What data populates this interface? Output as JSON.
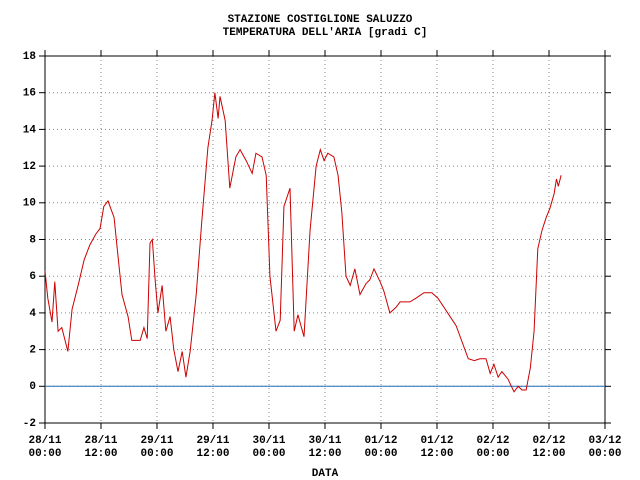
{
  "chart_data": {
    "type": "line",
    "title": [
      "STAZIONE COSTIGLIONE SALUZZO",
      "TEMPERATURA DELL'ARIA [gradi C]"
    ],
    "x_label": "DATA",
    "xlim": [
      0,
      120
    ],
    "xticks": [
      {
        "value": 0,
        "label": [
          "28/11",
          "00:00"
        ]
      },
      {
        "value": 12,
        "label": [
          "28/11",
          "12:00"
        ]
      },
      {
        "value": 24,
        "label": [
          "29/11",
          "00:00"
        ]
      },
      {
        "value": 36,
        "label": [
          "29/11",
          "12:00"
        ]
      },
      {
        "value": 48,
        "label": [
          "30/11",
          "00:00"
        ]
      },
      {
        "value": 60,
        "label": [
          "30/11",
          "12:00"
        ]
      },
      {
        "value": 72,
        "label": [
          "01/12",
          "00:00"
        ]
      },
      {
        "value": 84,
        "label": [
          "01/12",
          "12:00"
        ]
      },
      {
        "value": 96,
        "label": [
          "02/12",
          "00:00"
        ]
      },
      {
        "value": 108,
        "label": [
          "02/12",
          "12:00"
        ]
      },
      {
        "value": 120,
        "label": [
          "03/12",
          "00:00"
        ]
      }
    ],
    "ylim": [
      -2,
      18
    ],
    "yticks": [
      -2,
      0,
      2,
      4,
      6,
      8,
      10,
      12,
      14,
      16,
      18
    ],
    "grid": true,
    "reference_line": {
      "value": 0,
      "color": "#1f6fbf"
    },
    "x": [
      0,
      0.6,
      1.5,
      2.1,
      2.8,
      3.6,
      4.9,
      5.8,
      7.1,
      8.4,
      9.6,
      10.9,
      11.8,
      12.6,
      13.5,
      14.8,
      15.6,
      16.5,
      17.8,
      18.6,
      20.4,
      21.2,
      21.9,
      22.5,
      23,
      23.6,
      24.2,
      25.1,
      25.9,
      26.8,
      27.6,
      28.5,
      29.4,
      30.2,
      31.1,
      32.4,
      33.6,
      34.9,
      35.8,
      36.4,
      37.1,
      37.5,
      38.6,
      39.6,
      40.9,
      41.8,
      43.1,
      44.4,
      45.2,
      46.5,
      47.4,
      48.2,
      49.5,
      50.4,
      51.2,
      52.5,
      53.4,
      54.2,
      55.5,
      56.8,
      58.1,
      59.0,
      59.8,
      60.6,
      61.9,
      62.8,
      63.6,
      64.5,
      65.4,
      66.4,
      67.5,
      68.8,
      69.6,
      70.5,
      71.8,
      72.6,
      73.9,
      75.2,
      76.1,
      78.2,
      79.5,
      81.2,
      82.9,
      84.2,
      85.5,
      86.8,
      88.1,
      89.4,
      90.7,
      92.0,
      93.2,
      94.5,
      95.4,
      96.2,
      97.1,
      97.9,
      99.2,
      100.5,
      101.4,
      102.2,
      103.1,
      104.0,
      104.8,
      105.6,
      106.5,
      107.4,
      108.2,
      109.1,
      109.6,
      110.0,
      110.6
    ],
    "series": [
      {
        "color": "#cc0000",
        "values": [
          6.3,
          4.8,
          3.5,
          5.7,
          3.0,
          3.2,
          1.9,
          4.2,
          5.5,
          6.9,
          7.7,
          8.3,
          8.6,
          9.8,
          10.1,
          9.2,
          7.2,
          5.0,
          3.8,
          2.5,
          2.5,
          3.2,
          2.6,
          7.8,
          8.0,
          5.8,
          4.0,
          5.5,
          3.0,
          3.8,
          2.0,
          0.8,
          1.9,
          0.5,
          1.9,
          5.0,
          9.0,
          13.0,
          14.5,
          16.0,
          14.6,
          15.8,
          14.5,
          10.8,
          12.5,
          12.9,
          12.3,
          11.6,
          12.7,
          12.5,
          11.5,
          6.0,
          3.0,
          3.6,
          9.8,
          10.8,
          3.0,
          3.9,
          2.7,
          8.5,
          12.0,
          12.9,
          12.3,
          12.7,
          12.5,
          11.5,
          9.5,
          6.0,
          5.5,
          6.4,
          5.0,
          5.6,
          5.8,
          6.4,
          5.7,
          5.2,
          4.0,
          4.3,
          4.6,
          4.6,
          4.8,
          5.1,
          5.1,
          4.8,
          4.3,
          3.8,
          3.3,
          2.4,
          1.5,
          1.4,
          1.5,
          1.5,
          0.7,
          1.2,
          0.5,
          0.8,
          0.4,
          -0.3,
          0.0,
          -0.2,
          -0.2,
          1.0,
          3.0,
          7.5,
          8.5,
          9.2,
          9.7,
          10.5,
          11.3,
          10.9,
          11.5
        ]
      }
    ]
  }
}
